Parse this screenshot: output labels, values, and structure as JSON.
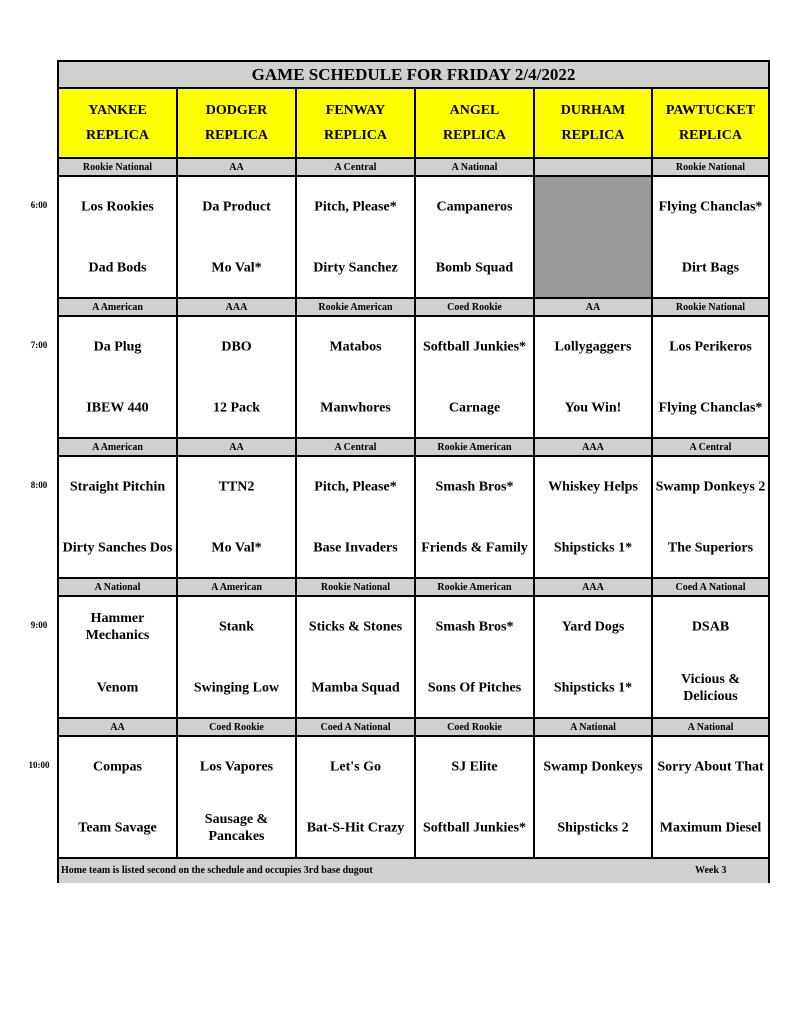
{
  "title": "GAME SCHEDULE FOR FRIDAY 2/4/2022",
  "fields": [
    {
      "name": "YANKEE",
      "sub": "REPLICA"
    },
    {
      "name": "DODGER",
      "sub": "REPLICA"
    },
    {
      "name": "FENWAY",
      "sub": "REPLICA"
    },
    {
      "name": "ANGEL",
      "sub": "REPLICA"
    },
    {
      "name": "DURHAM",
      "sub": "REPLICA"
    },
    {
      "name": "PAWTUCKET",
      "sub": "REPLICA"
    }
  ],
  "slots": [
    {
      "time": "6:00",
      "divisions": [
        "Rookie National",
        "AA",
        "A Central",
        "A National",
        "",
        "Rookie National"
      ],
      "games": [
        [
          "Los Rookies",
          "Dad Bods"
        ],
        [
          "Da Product",
          "Mo Val*"
        ],
        [
          "Pitch, Please*",
          "Dirty Sanchez"
        ],
        [
          "Campaneros",
          "Bomb Squad"
        ],
        null,
        [
          "Flying Chanclas*",
          "Dirt Bags"
        ]
      ]
    },
    {
      "time": "7:00",
      "divisions": [
        "A American",
        "AAA",
        "Rookie American",
        "Coed Rookie",
        "AA",
        "Rookie National"
      ],
      "games": [
        [
          "Da Plug",
          "IBEW 440"
        ],
        [
          "DBO",
          "12 Pack"
        ],
        [
          "Matabos",
          "Manwhores"
        ],
        [
          "Softball Junkies*",
          "Carnage"
        ],
        [
          "Lollygaggers",
          "You Win!"
        ],
        [
          "Los Perikeros",
          "Flying Chanclas*"
        ]
      ]
    },
    {
      "time": "8:00",
      "divisions": [
        "A American",
        "AA",
        "A Central",
        "Rookie American",
        "AAA",
        "A Central"
      ],
      "games": [
        [
          "Straight Pitchin",
          "Dirty Sanches Dos"
        ],
        [
          "TTN2",
          "Mo Val*"
        ],
        [
          "Pitch, Please*",
          "Base Invaders"
        ],
        [
          "Smash Bros*",
          "Friends & Family"
        ],
        [
          "Whiskey Helps",
          "Shipsticks 1*"
        ],
        [
          "Swamp Donkeys 2",
          "The Superiors"
        ]
      ]
    },
    {
      "time": "9:00",
      "divisions": [
        "A National",
        "A American",
        "Rookie National",
        "Rookie American",
        "AAA",
        "Coed A National"
      ],
      "games": [
        [
          "Hammer Mechanics",
          "Venom"
        ],
        [
          "Stank",
          "Swinging Low"
        ],
        [
          "Sticks & Stones",
          "Mamba Squad"
        ],
        [
          "Smash Bros*",
          "Sons Of Pitches"
        ],
        [
          "Yard Dogs",
          "Shipsticks 1*"
        ],
        [
          "DSAB",
          "Vicious & Delicious"
        ]
      ]
    },
    {
      "time": "10:00",
      "divisions": [
        "AA",
        "Coed Rookie",
        "Coed A National",
        "Coed Rookie",
        "A National",
        "A National"
      ],
      "games": [
        [
          "Compas",
          "Team Savage"
        ],
        [
          "Los Vapores",
          "Sausage & Pancakes"
        ],
        [
          "Let's Go",
          "Bat-S-Hit Crazy"
        ],
        [
          "SJ Elite",
          "Softball Junkies*"
        ],
        [
          "Swamp Donkeys",
          "Shipsticks 2"
        ],
        [
          "Sorry About That",
          "Maximum Diesel"
        ]
      ]
    }
  ],
  "footer": {
    "note": "Home team is listed second on the schedule and occupies 3rd base dugout",
    "week": "Week 3"
  },
  "colors": {
    "header": "#ffff00",
    "band": "#d0d0d0",
    "unused": "#999999"
  }
}
